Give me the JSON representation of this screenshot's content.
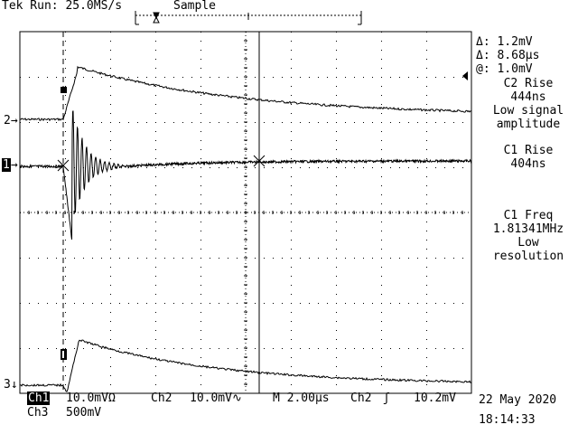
{
  "header": {
    "status": "Tek Run: 25.0MS/s",
    "acq_mode": "Sample"
  },
  "markers": {
    "ch2": "2",
    "ch1": "1",
    "ch3": "3"
  },
  "measurements": {
    "cursor_delta_v": "Δ: 1.2mV",
    "cursor_delta_t": "Δ: 8.68μs",
    "cursor_at": "@: 1.0mV",
    "m1_title": "C2 Rise",
    "m1_value": "444ns",
    "m1_note1": "Low signal",
    "m1_note2": "amplitude",
    "m2_title": "C1 Rise",
    "m2_value": "404ns",
    "m3_title": "C1 Freq",
    "m3_value": "1.81341MHz",
    "m3_note1": "Low",
    "m3_note2": "resolution"
  },
  "footer": {
    "ch1_label": "Ch1",
    "ch1_scale": "10.0mVΩ",
    "ch2_label": "Ch2",
    "ch2_scale": "10.0mV∿",
    "timebase": "M 2.00μs",
    "trig_src": "Ch2",
    "trig_slope": "ʃ",
    "trig_level": "10.2mV",
    "ch3_label": "Ch3",
    "ch3_scale": "500mV",
    "date": "22 May 2020",
    "time": "18:14:33"
  },
  "colors": {
    "trace": "#000000",
    "graticule": "#000000",
    "background": "#ffffff"
  }
}
